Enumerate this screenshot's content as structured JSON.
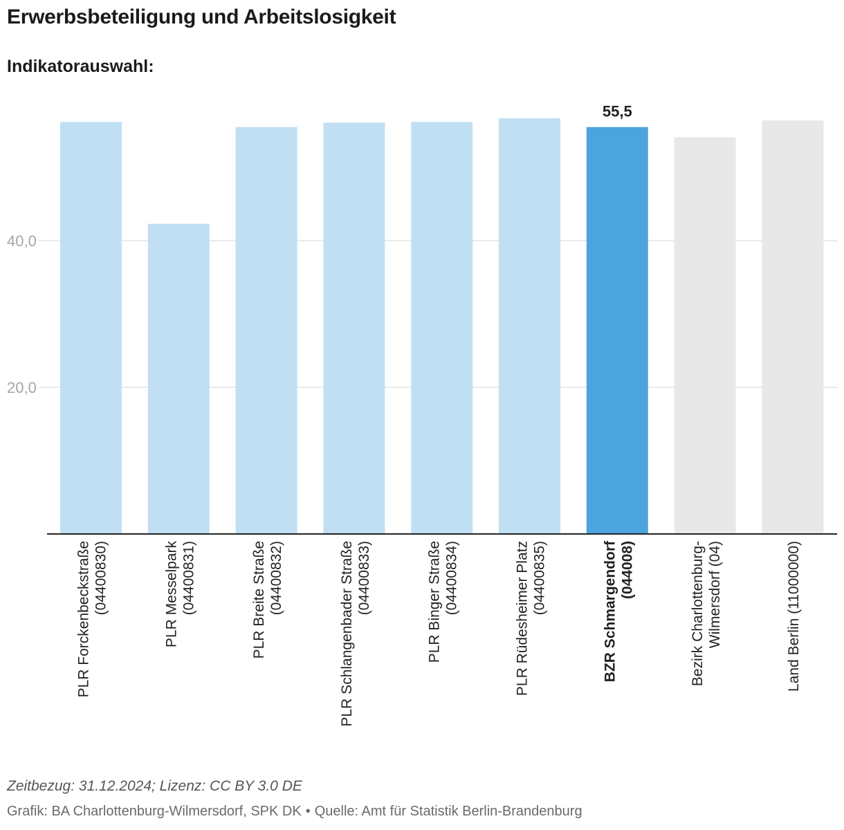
{
  "header": {
    "title": "Erwerbsbeteiligung und Arbeitslosigkeit",
    "subtitle": "Indikatorauswahl:"
  },
  "chart_data": {
    "type": "bar",
    "ylim": [
      0,
      56.5
    ],
    "yticks": [
      {
        "value": 20,
        "label": "20,0"
      },
      {
        "value": 40,
        "label": "40,0"
      }
    ],
    "categories": [
      {
        "line1": "PLR Forckenbeckstraße",
        "line2": "(04400830)",
        "value": 56.2,
        "color": "#c0dff3",
        "highlight": false
      },
      {
        "line1": "PLR Messelpark",
        "line2": "(04400831)",
        "value": 42.3,
        "color": "#c0dff3",
        "highlight": false
      },
      {
        "line1": "PLR Breite Straße",
        "line2": "(04400832)",
        "value": 55.5,
        "color": "#c0dff3",
        "highlight": false
      },
      {
        "line1": "PLR Schlangenbader Straße",
        "line2": "(04400833)",
        "value": 56.1,
        "color": "#c0dff3",
        "highlight": false
      },
      {
        "line1": "PLR Binger Straße",
        "line2": "(04400834)",
        "value": 56.2,
        "color": "#c0dff3",
        "highlight": false
      },
      {
        "line1": "PLR Rüdesheimer Platz",
        "line2": "(04400835)",
        "value": 56.7,
        "color": "#c0dff3",
        "highlight": false
      },
      {
        "line1": "BZR Schmargendorf",
        "line2": "(044008)",
        "value": 55.5,
        "color": "#4ba4de",
        "highlight": true,
        "value_label": "55,5"
      },
      {
        "line1": "Bezirk Charlottenburg-",
        "line2": "Wilmersdorf (04)",
        "value": 54.1,
        "color": "#e8e8e8",
        "highlight": false
      },
      {
        "line1": "Land Berlin (11000000)",
        "line2": "",
        "value": 56.4,
        "color": "#e8e8e8",
        "highlight": false
      }
    ],
    "colors": {
      "gridline": "#e3e3e3",
      "axis": "#222222",
      "ticklabel": "#a6a6a6",
      "category_label": "#222222"
    }
  },
  "footer": {
    "note": "Zeitbezug: 31.12.2024; Lizenz: CC BY 3.0 DE",
    "credit_left": "Grafik: BA Charlottenburg-Wilmersdorf, SPK DK",
    "separator": "•",
    "credit_right": "Quelle: Amt für Statistik Berlin-Brandenburg"
  }
}
